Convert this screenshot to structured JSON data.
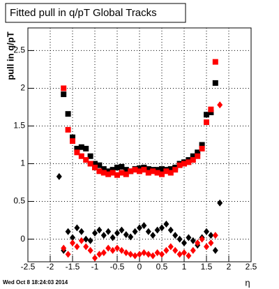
{
  "chart_data": {
    "type": "scatter",
    "title": "Fitted pull in q/pT  Global Tracks",
    "ylabel": "pull in q/pT",
    "xlabel": "η",
    "timestamp": "Wed Oct  8 18:24:03 2014",
    "x": [
      -1.8,
      -1.7,
      -1.6,
      -1.5,
      -1.4,
      -1.3,
      -1.2,
      -1.1,
      -1.0,
      -0.9,
      -0.8,
      -0.7,
      -0.6,
      -0.5,
      -0.4,
      -0.3,
      -0.2,
      -0.1,
      0,
      0.1,
      0.2,
      0.3,
      0.4,
      0.5,
      0.6,
      0.7,
      0.8,
      0.9,
      1.0,
      1.1,
      1.2,
      1.3,
      1.4,
      1.5,
      1.6,
      1.7,
      1.8
    ],
    "series": [
      {
        "color": "#000000",
        "marker": "square",
        "values": [
          null,
          1.92,
          1.66,
          1.35,
          1.2,
          1.22,
          1.2,
          1.1,
          1.0,
          0.98,
          0.93,
          0.9,
          0.92,
          0.95,
          0.96,
          0.92,
          0.9,
          0.93,
          0.94,
          0.95,
          0.93,
          0.92,
          0.92,
          0.93,
          0.92,
          0.93,
          0.95,
          1.0,
          1.02,
          1.05,
          1.1,
          1.15,
          1.25,
          1.65,
          1.68,
          2.07,
          null
        ]
      },
      {
        "color": "#ff0000",
        "marker": "square",
        "values": [
          null,
          2.0,
          1.45,
          1.3,
          1.15,
          1.1,
          1.05,
          1.0,
          0.95,
          0.9,
          0.88,
          0.86,
          0.88,
          0.85,
          0.88,
          0.86,
          0.9,
          0.92,
          0.9,
          0.92,
          0.88,
          0.9,
          0.88,
          0.86,
          0.9,
          0.88,
          0.92,
          0.98,
          1.0,
          1.02,
          1.05,
          1.1,
          1.2,
          1.55,
          1.72,
          2.35,
          null
        ]
      },
      {
        "color": "#000000",
        "marker": "diamond",
        "values": [
          0.83,
          -0.15,
          0.1,
          0.02,
          0.15,
          0.1,
          0.0,
          -0.02,
          0.08,
          0.12,
          0.05,
          0.1,
          0.02,
          0.08,
          0.12,
          0.06,
          0.03,
          0.1,
          0.15,
          0.18,
          0.1,
          0.05,
          0.12,
          0.15,
          0.2,
          0.12,
          0.05,
          0.0,
          -0.05,
          0.02,
          -0.02,
          -0.08,
          0.02,
          0.1,
          0.05,
          -0.15,
          0.48
        ]
      },
      {
        "color": "#ff0000",
        "marker": "diamond",
        "values": [
          null,
          -0.12,
          -0.2,
          -0.05,
          -0.1,
          -0.02,
          -0.1,
          -0.15,
          -0.25,
          -0.2,
          -0.18,
          -0.12,
          -0.15,
          -0.12,
          -0.15,
          -0.18,
          -0.2,
          -0.22,
          -0.2,
          -0.18,
          -0.2,
          -0.22,
          -0.18,
          -0.2,
          -0.15,
          -0.1,
          -0.15,
          -0.2,
          -0.18,
          -0.22,
          -0.15,
          -0.05,
          0.0,
          -0.1,
          -0.05,
          0.05,
          1.78
        ]
      }
    ],
    "xlim": [
      -2.5,
      2.5
    ],
    "xticks": [
      -2.5,
      -2,
      -1.5,
      -1,
      -0.5,
      0,
      0.5,
      1,
      1.5,
      2,
      2.5
    ],
    "ylim": [
      -0.3,
      2.8
    ],
    "yticks": [
      0,
      0.5,
      1,
      1.5,
      2,
      2.5
    ],
    "grid": true
  }
}
